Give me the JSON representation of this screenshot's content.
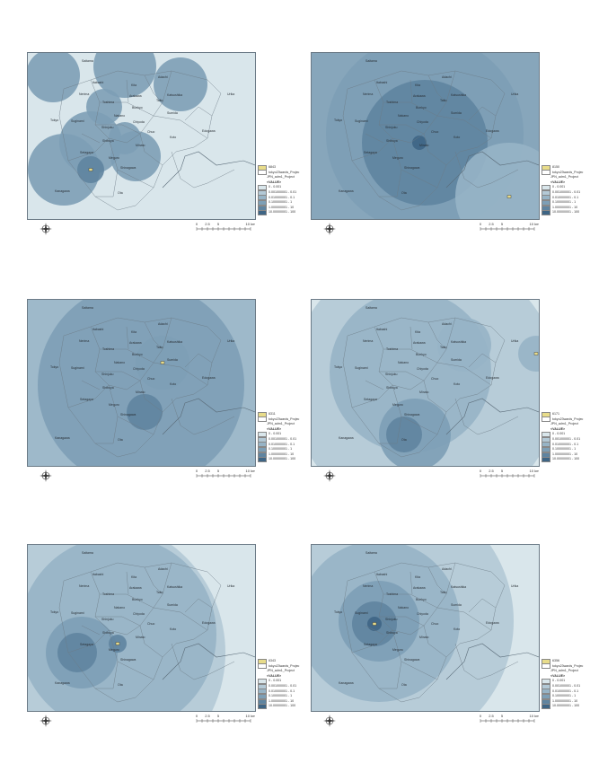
{
  "legend_title": "<VALUE>",
  "legend_boundary": "tokyo23wards_Projec",
  "legend_boundary2": "JPN_adm1_Project",
  "classes": [
    "0 - 0.001",
    "0.001000001 - 0.01",
    "0.010000001 - 0.1",
    "0.100000001 - 1",
    "1.000000001 - 10",
    "10.00000001 - 100"
  ],
  "class_colors": [
    "#d9e6eb",
    "#b3c9d6",
    "#97b4c6",
    "#7d9fb6",
    "#5f84a0",
    "#3e6585"
  ],
  "point_color": "#e8dc8a",
  "scale": {
    "labels": [
      "0",
      "2.5",
      "5",
      "",
      "10 km"
    ]
  },
  "places": [
    "Saitama",
    "Adachi",
    "Kita",
    "Itabashi",
    "Katsushika",
    "Urika",
    "Nerima",
    "Arakawa",
    "Taito",
    "Toshima",
    "Bunkyo",
    "Sumida",
    "Suginami",
    "Tokyo",
    "Nakano",
    "Shinjuku",
    "Chiyoda",
    "Chuo",
    "Koto",
    "Edogawa",
    "Shibuya",
    "Minato",
    "Setagaya",
    "Meguro",
    "Shinagawa",
    "Ota",
    "Kanagawa"
  ],
  "panels": [
    {
      "id": "6843",
      "label": "6843"
    },
    {
      "id": "8150",
      "label": "8150"
    },
    {
      "id": "6311",
      "label": "6311"
    },
    {
      "id": "6171",
      "label": "6171"
    },
    {
      "id": "6343",
      "label": "6343"
    },
    {
      "id": "6356",
      "label": "6356"
    }
  ]
}
